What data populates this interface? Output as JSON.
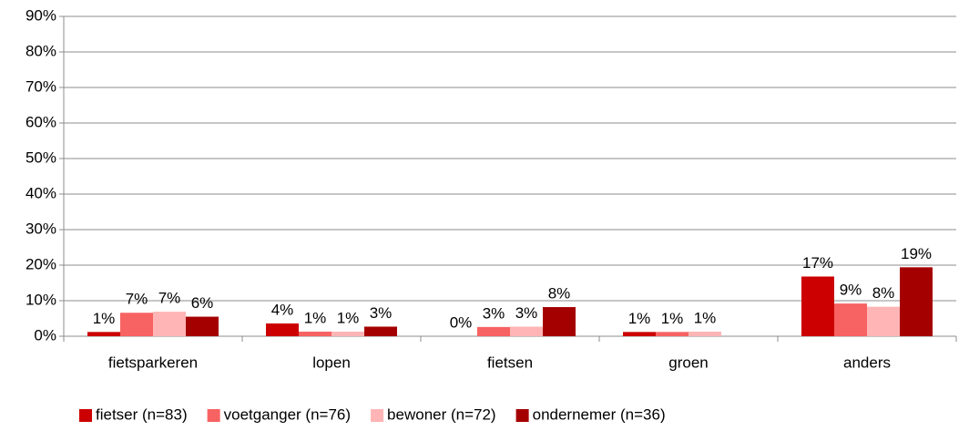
{
  "chart_data": {
    "type": "bar",
    "categories": [
      "fietsparkeren",
      "lopen",
      "fietsen",
      "groen",
      "anders"
    ],
    "series": [
      {
        "name": "fietser (n=83)",
        "color": "#cc0000",
        "values": [
          1.2,
          3.6,
          0,
          1.2,
          16.8
        ],
        "value_labels": [
          "1%",
          "4%",
          "0%",
          "1%",
          "17%"
        ]
      },
      {
        "name": "voetganger (n=76)",
        "color": "#f76262",
        "values": [
          6.6,
          1.3,
          2.6,
          1.2,
          9.2
        ],
        "value_labels": [
          "7%",
          "1%",
          "3%",
          "1%",
          "9%"
        ]
      },
      {
        "name": "bewoner (n=72)",
        "color": "#ffb5b5",
        "values": [
          6.9,
          1.3,
          2.7,
          1.3,
          8.3
        ],
        "value_labels": [
          "7%",
          "1%",
          "3%",
          "1%",
          "8%"
        ]
      },
      {
        "name": "ondernemer (n=36)",
        "color": "#a50000",
        "values": [
          5.5,
          2.7,
          8.2,
          null,
          19.4
        ],
        "value_labels": [
          "6%",
          "3%",
          "8%",
          null,
          "19%"
        ]
      }
    ],
    "ylim": [
      0,
      90
    ],
    "yticks": [
      {
        "value": 0,
        "label": "0%"
      },
      {
        "value": 10,
        "label": "10%"
      },
      {
        "value": 20,
        "label": "20%"
      },
      {
        "value": 30,
        "label": "30%"
      },
      {
        "value": 40,
        "label": "40%"
      },
      {
        "value": 50,
        "label": "50%"
      },
      {
        "value": 60,
        "label": "60%"
      },
      {
        "value": 70,
        "label": "70%"
      },
      {
        "value": 80,
        "label": "80%"
      },
      {
        "value": 90,
        "label": "90%"
      }
    ],
    "grid": true,
    "legend": "bottom"
  }
}
